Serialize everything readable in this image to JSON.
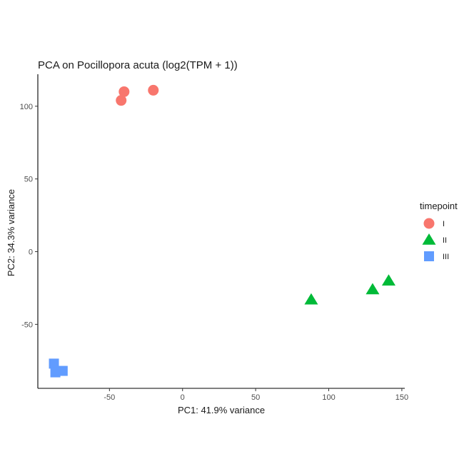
{
  "chart_data": {
    "type": "scatter",
    "title": "PCA on Pocillopora acuta (log2(TPM + 1))",
    "xlabel": "PC1: 41.9% variance",
    "ylabel": "PC2: 34.3% variance",
    "xlim": [
      -99,
      152
    ],
    "ylim": [
      -94,
      122
    ],
    "xticks": [
      -50,
      0,
      50,
      100,
      150
    ],
    "xtick_labels": [
      "-50",
      "0",
      "50",
      "100",
      "150"
    ],
    "yticks": [
      -50,
      0,
      50,
      100
    ],
    "ytick_labels": [
      "-50",
      "0",
      "50",
      "100"
    ],
    "grid": false,
    "legend": {
      "title": "timepoint",
      "position": "right"
    },
    "series": [
      {
        "name": "I",
        "shape": "circle",
        "color": "#F8766D",
        "points": [
          {
            "x": -42,
            "y": 104
          },
          {
            "x": -40,
            "y": 110
          },
          {
            "x": -20,
            "y": 111
          }
        ]
      },
      {
        "name": "II",
        "shape": "triangle",
        "color": "#00BA38",
        "points": [
          {
            "x": 88,
            "y": -33
          },
          {
            "x": 130,
            "y": -26
          },
          {
            "x": 141,
            "y": -20
          }
        ]
      },
      {
        "name": "III",
        "shape": "square",
        "color": "#619CFF",
        "points": [
          {
            "x": -88,
            "y": -77
          },
          {
            "x": -82,
            "y": -82
          },
          {
            "x": -87,
            "y": -83
          }
        ]
      }
    ]
  }
}
